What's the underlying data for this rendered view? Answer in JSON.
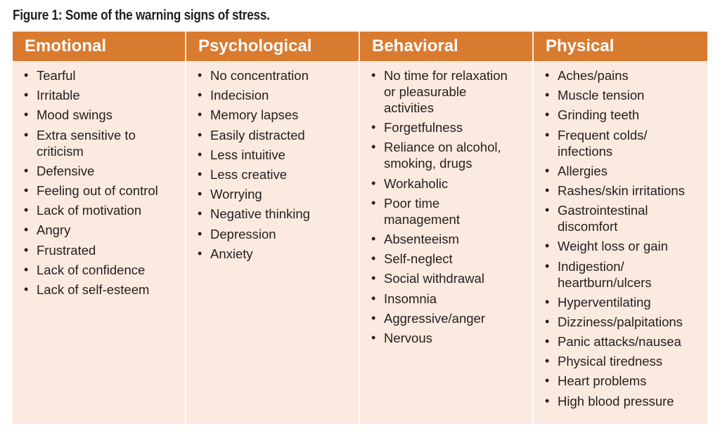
{
  "title": "Figure 1: Some of the warning signs of stress.",
  "colors": {
    "header_bg": "#d97b2f",
    "body_bg": "#fbeadf",
    "text": "#231f20"
  },
  "columns": [
    {
      "header": "Emotional",
      "items": [
        "Tearful",
        "Irritable",
        "Mood swings",
        "Extra sensitive to\ncriticism",
        "Defensive",
        "Feeling out of control",
        "Lack of motivation",
        "Angry",
        "Frustrated",
        "Lack of confidence",
        "Lack of self-esteem"
      ]
    },
    {
      "header": "Psychological",
      "items": [
        "No concentration",
        "Indecision",
        "Memory lapses",
        "Easily distracted",
        "Less intuitive",
        "Less creative",
        "Worrying",
        "Negative thinking",
        "Depression",
        "Anxiety"
      ]
    },
    {
      "header": "Behavioral",
      "items": [
        "No time for relaxation\nor pleasurable\nactivities",
        "Forgetfulness",
        "Reliance on alcohol,\nsmoking, drugs",
        "Workaholic",
        "Poor time\nmanagement",
        "Absenteeism",
        "Self-neglect",
        "Social withdrawal",
        "Insomnia",
        "Aggressive/anger",
        "Nervous"
      ]
    },
    {
      "header": "Physical",
      "items": [
        "Aches/pains",
        "Muscle tension",
        "Grinding teeth",
        "Frequent colds/\ninfections",
        "Allergies",
        "Rashes/skin irritations",
        "Gastrointestinal\ndiscomfort",
        "Weight loss or gain",
        "Indigestion/\nheartburn/ulcers",
        "Hyperventilating",
        "Dizziness/palpitations",
        "Panic attacks/nausea",
        "Physical tiredness",
        "Heart problems",
        "High blood pressure"
      ]
    }
  ]
}
